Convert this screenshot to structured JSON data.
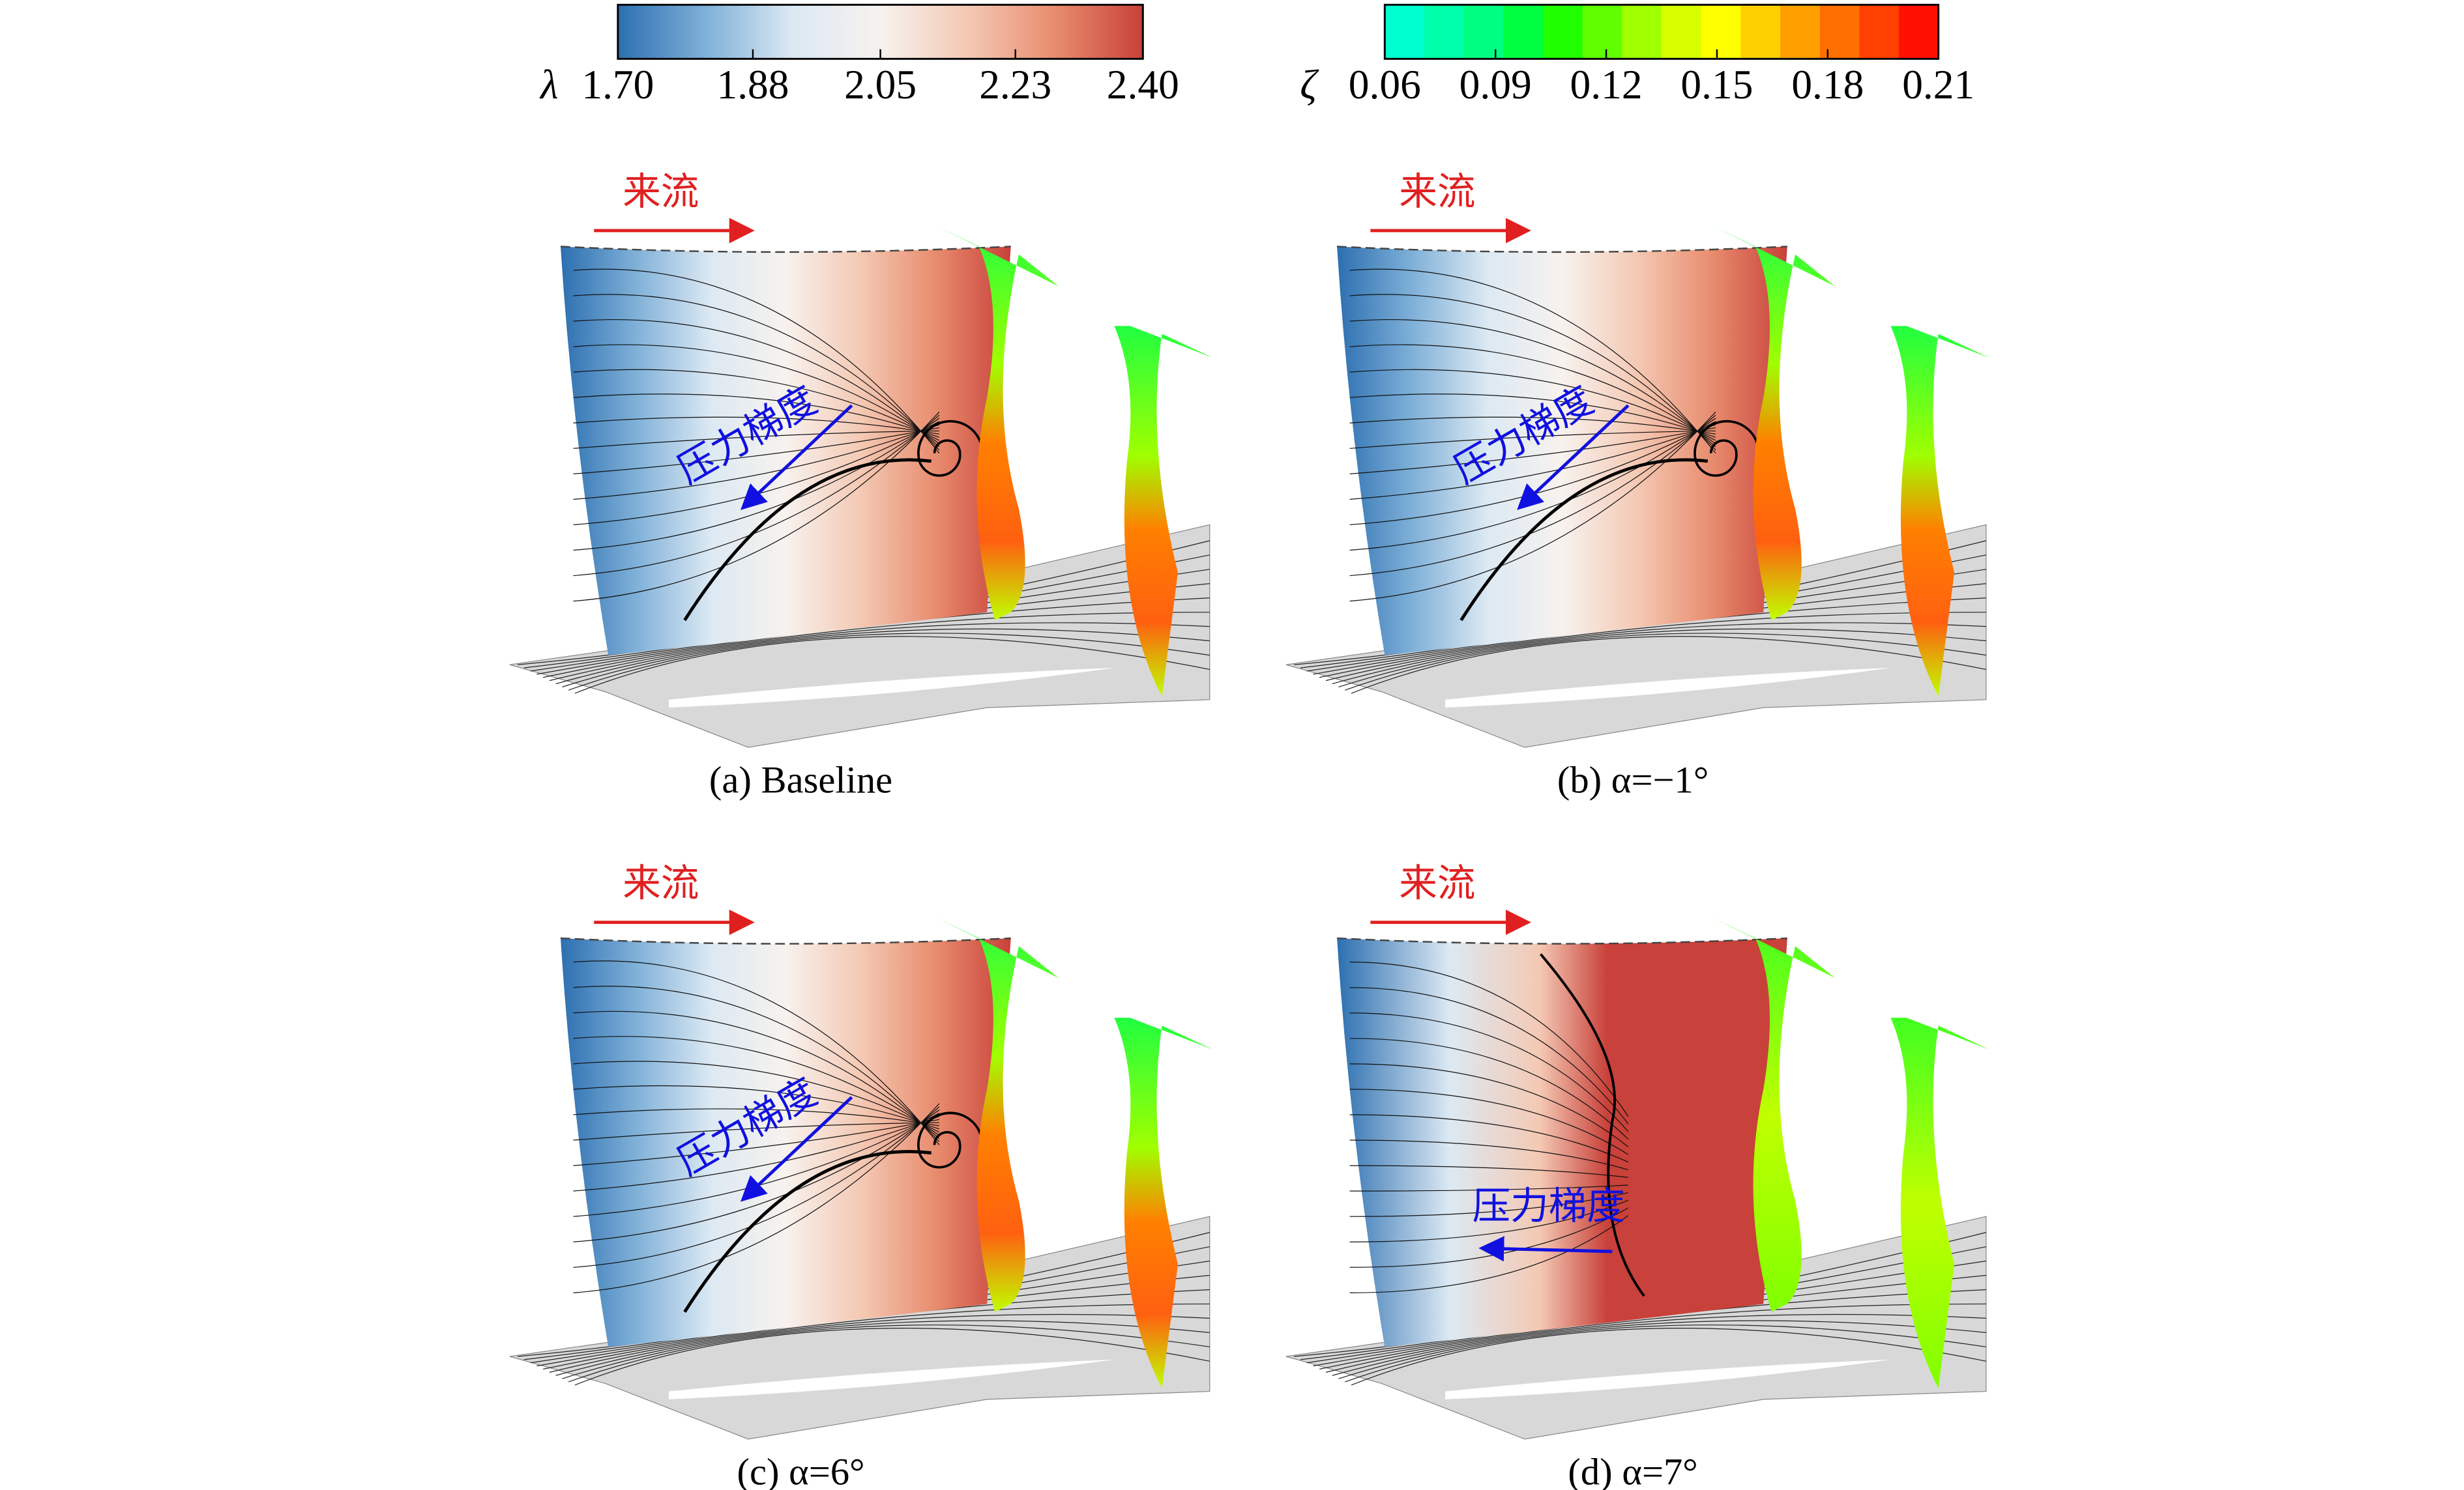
{
  "colorbars": [
    {
      "symbol": "λ",
      "lim": [
        1.7,
        2.4
      ],
      "ticks": [
        {
          "value": 1.7,
          "label": "1.70"
        },
        1.88,
        2.05,
        2.23,
        {
          "value": 2.4,
          "label": "2.40"
        }
      ],
      "colors": [
        "#2c6fb0",
        "#7fb0d8",
        "#dce9f3",
        "#f7f2ee",
        "#f4c9b4",
        "#e88c6e",
        "#c8413a"
      ]
    },
    {
      "symbol": "ζ",
      "lim": [
        0.06,
        0.21
      ],
      "ticks": [
        0.06,
        0.09,
        0.12,
        0.15,
        0.18,
        0.21
      ],
      "colors": [
        "#00ffd0",
        "#00ffaa",
        "#00ff80",
        "#00ff40",
        "#20ff00",
        "#60ff00",
        "#a0ff00",
        "#d8ff00",
        "#ffff00",
        "#ffd000",
        "#ffa000",
        "#ff7000",
        "#ff4000",
        "#ff1000"
      ]
    }
  ],
  "panels": [
    {
      "caption": "(a) Baseline",
      "inflow_label": "来流",
      "gradient_label": "压力梯度"
    },
    {
      "caption": "(b) α=−1°",
      "inflow_label": "来流",
      "gradient_label": "压力梯度"
    },
    {
      "caption": "(c) α=6°",
      "inflow_label": "来流",
      "gradient_label": "压力梯度"
    },
    {
      "caption": "(d) α=7°",
      "inflow_label": "来流",
      "gradient_label": "压力梯度"
    }
  ]
}
